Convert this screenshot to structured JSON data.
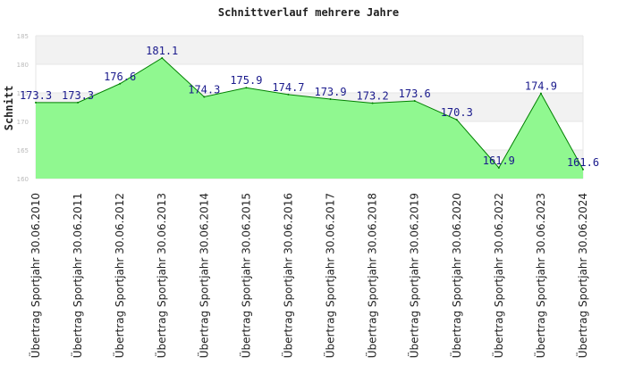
{
  "chart_data": {
    "type": "area",
    "title": "Schnittverlauf mehrere Jahre",
    "xlabel": "",
    "ylabel": "Schnitt",
    "categories": [
      "Übertrag Sportjahr 30.06.2010",
      "Übertrag Sportjahr 30.06.2011",
      "Übertrag Sportjahr 30.06.2012",
      "Übertrag Sportjahr 30.06.2013",
      "Übertrag Sportjahr 30.06.2014",
      "Übertrag Sportjahr 30.06.2015",
      "Übertrag Sportjahr 30.06.2016",
      "Übertrag Sportjahr 30.06.2017",
      "Übertrag Sportjahr 30.06.2018",
      "Übertrag Sportjahr 30.06.2019",
      "Übertrag Sportjahr 30.06.2020",
      "Übertrag Sportjahr 30.06.2022",
      "Übertrag Sportjahr 30.06.2023",
      "Übertrag Sportjahr 30.06.2024"
    ],
    "values": [
      173.3,
      173.3,
      176.6,
      181.1,
      174.3,
      175.9,
      174.7,
      173.9,
      173.2,
      173.6,
      170.3,
      161.9,
      174.9,
      161.6
    ],
    "data_labels": [
      "173.3",
      "173.3",
      "176.6",
      "181.1",
      "174.3",
      "175.9",
      "174.7",
      "173.9",
      "173.2",
      "173.6",
      "170.3",
      "161.9",
      "174.9",
      "161.6"
    ],
    "ylim": [
      160,
      185
    ],
    "yticks": [
      "160",
      "165",
      "170",
      "175",
      "180",
      "185"
    ],
    "grid": true,
    "colors": {
      "fill": "#90f890",
      "line": "#008000",
      "band": "#f2f2f2",
      "grid": "#e6e6e6"
    }
  }
}
